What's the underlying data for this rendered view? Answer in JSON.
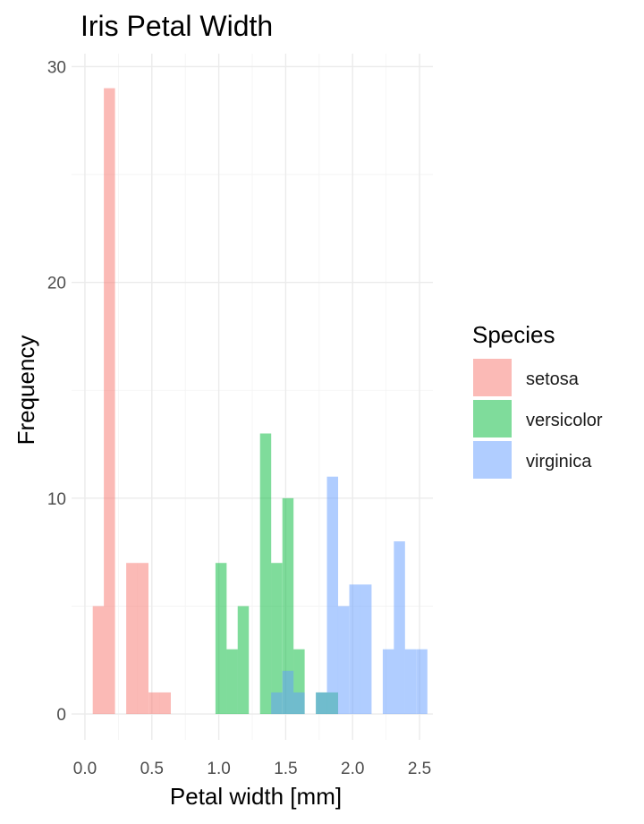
{
  "chart_data": {
    "type": "histogram",
    "title": "Iris Petal Width",
    "xlabel": "Petal width [mm]",
    "ylabel": "Frequency",
    "xlim": [
      -0.1,
      2.6
    ],
    "ylim": [
      -1.2,
      30.6
    ],
    "x_ticks": [
      0.0,
      0.5,
      1.0,
      1.5,
      2.0,
      2.5
    ],
    "x_tick_labels": [
      "0.0",
      "0.5",
      "1.0",
      "1.5",
      "2.0",
      "2.5"
    ],
    "y_ticks": [
      0,
      10,
      20,
      30
    ],
    "y_tick_labels": [
      "0",
      "10",
      "20",
      "30"
    ],
    "bin_width": 0.0833,
    "grid": true,
    "legend": {
      "title": "Species",
      "position": "right",
      "entries": [
        "setosa",
        "versicolor",
        "virginica"
      ]
    },
    "series": [
      {
        "name": "setosa",
        "color": "#F8766D",
        "bars": [
          {
            "x": 0.1,
            "count": 5
          },
          {
            "x": 0.183,
            "count": 29
          },
          {
            "x": 0.35,
            "count": 7
          },
          {
            "x": 0.433,
            "count": 7
          },
          {
            "x": 0.517,
            "count": 1
          },
          {
            "x": 0.6,
            "count": 1
          }
        ]
      },
      {
        "name": "versicolor",
        "color": "#00BA38",
        "bars": [
          {
            "x": 1.017,
            "count": 7
          },
          {
            "x": 1.1,
            "count": 3
          },
          {
            "x": 1.183,
            "count": 5
          },
          {
            "x": 1.35,
            "count": 13
          },
          {
            "x": 1.433,
            "count": 7
          },
          {
            "x": 1.517,
            "count": 10
          },
          {
            "x": 1.6,
            "count": 3
          },
          {
            "x": 1.767,
            "count": 1
          },
          {
            "x": 1.85,
            "count": 1
          }
        ]
      },
      {
        "name": "virginica",
        "color": "#619CFF",
        "bars": [
          {
            "x": 1.433,
            "count": 1
          },
          {
            "x": 1.517,
            "count": 2
          },
          {
            "x": 1.6,
            "count": 1
          },
          {
            "x": 1.767,
            "count": 1
          },
          {
            "x": 1.85,
            "count": 11
          },
          {
            "x": 1.933,
            "count": 5
          },
          {
            "x": 2.017,
            "count": 6
          },
          {
            "x": 2.1,
            "count": 6
          },
          {
            "x": 2.267,
            "count": 3
          },
          {
            "x": 2.35,
            "count": 8
          },
          {
            "x": 2.433,
            "count": 3
          },
          {
            "x": 2.517,
            "count": 3
          }
        ]
      }
    ]
  }
}
